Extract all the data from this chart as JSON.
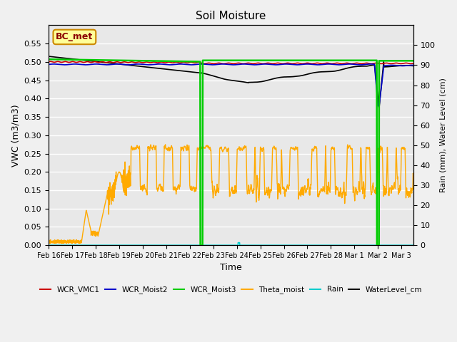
{
  "title": "Soil Moisture",
  "xlabel": "Time",
  "ylabel_left": "VWC (m3/m3)",
  "ylabel_right": "Rain (mm), Water Level (cm)",
  "xlim_days": [
    0,
    15.5
  ],
  "ylim_left": [
    0.0,
    0.6
  ],
  "ylim_right": [
    0,
    110
  ],
  "fig_facecolor": "#f0f0f0",
  "plot_bg_color": "#e8e8e8",
  "annotation_box_label": "BC_met",
  "annotation_box_color": "#ffff99",
  "annotation_box_edge": "#cc8800",
  "xtick_labels": [
    "Feb 16",
    "Feb 17",
    "Feb 18",
    "Feb 19",
    "Feb 20",
    "Feb 21",
    "Feb 22",
    "Feb 23",
    "Feb 24",
    "Feb 25",
    "Feb 26",
    "Feb 27",
    "Feb 28",
    "Mar 1",
    "Mar 2",
    "Mar 3"
  ],
  "legend_entries": [
    "WCR_VMC1",
    "WCR_Moist2",
    "WCR_Moist3",
    "Theta_moist",
    "Rain",
    "WaterLevel_cm"
  ],
  "legend_colors": [
    "#cc0000",
    "#0000cc",
    "#00cc00",
    "#ffaa00",
    "#00cccc",
    "#000000"
  ]
}
